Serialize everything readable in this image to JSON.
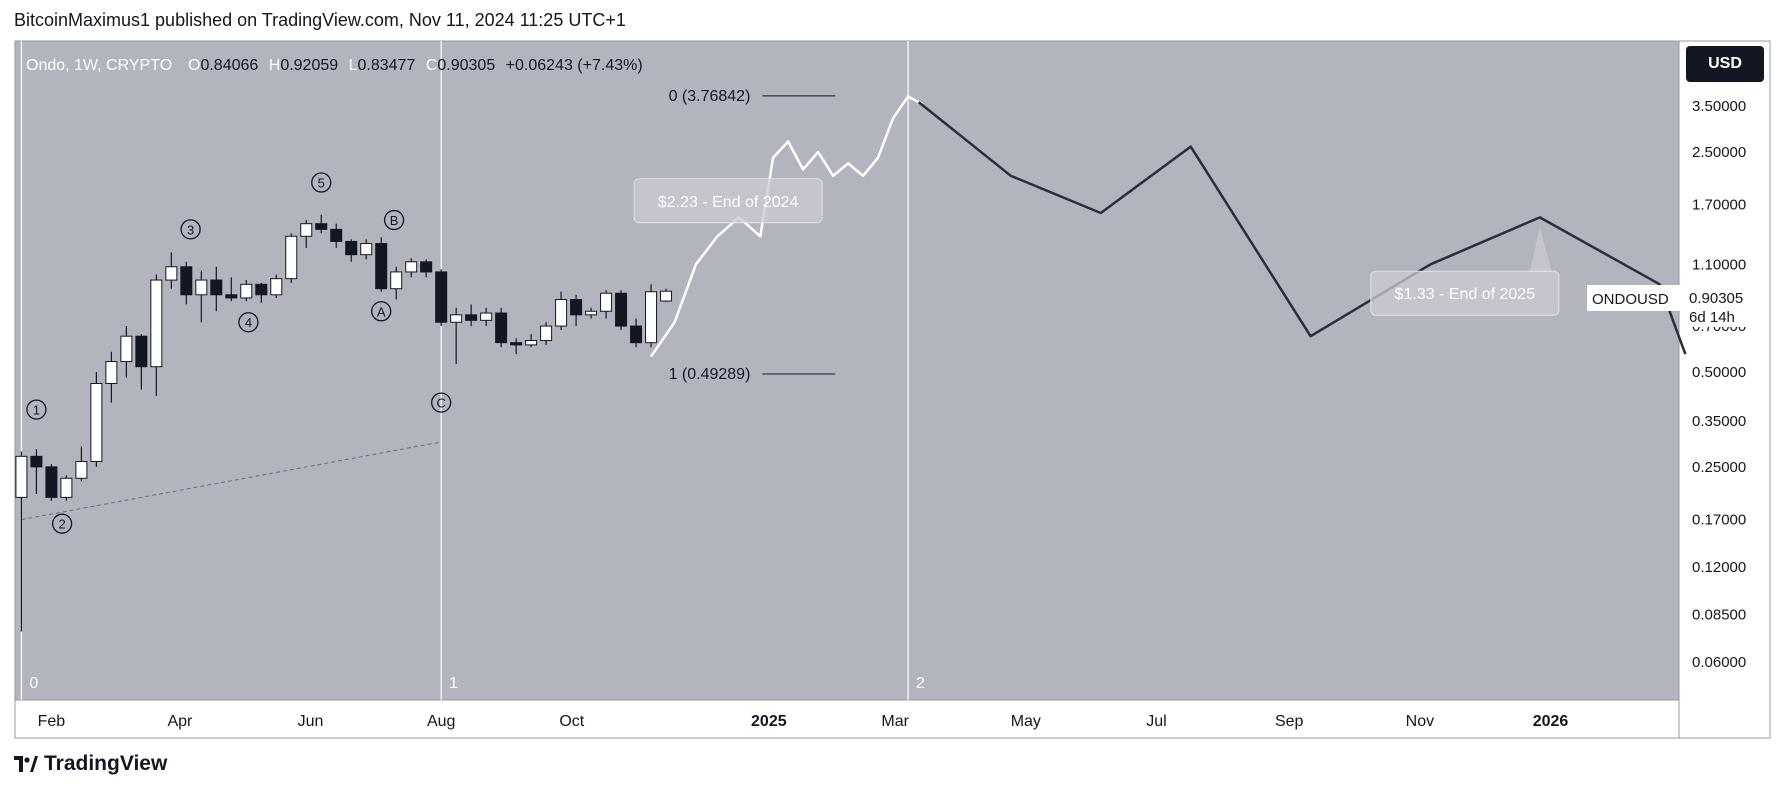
{
  "header": {
    "published_line": "BitcoinMaximus1 published on TradingView.com, Nov 11, 2024 11:25 UTC+1"
  },
  "footer": {
    "brand": "TradingView"
  },
  "legend": {
    "symbol": "Ondo, 1W, CRYPTO",
    "o_label": "O",
    "o_value": "0.84066",
    "h_label": "H",
    "h_value": "0.92059",
    "l_label": "L",
    "l_value": "0.83477",
    "c_label": "C",
    "c_value": "0.90305",
    "change": "+0.06243 (+7.43%)"
  },
  "currency_button": "USD",
  "price_tag": {
    "symbol": "ONDOUSD",
    "price": "0.90305",
    "countdown": "6d 14h"
  },
  "colors": {
    "background": "#ffffff",
    "plot_bg": "#b2b5be",
    "bull_body": "#ffffff",
    "bear_body": "#131722",
    "projection_white": "#ffffff",
    "projection_black": "#2a2e39",
    "axis_text": "#131722"
  },
  "chart_data": {
    "type": "candlestick",
    "y_scale": "log",
    "ylim": [
      0.05,
      5.0
    ],
    "x_start": "2024-01-15",
    "x_end": "2026-03-02",
    "y_ticks": [
      "3.50000",
      "2.50000",
      "1.70000",
      "1.10000",
      "0.70000",
      "0.50000",
      "0.35000",
      "0.25000",
      "0.17000",
      "0.12000",
      "0.08500",
      "0.06000"
    ],
    "x_ticks": [
      {
        "label": "Feb",
        "date": "2024-02-01",
        "bold": false
      },
      {
        "label": "Apr",
        "date": "2024-04-01",
        "bold": false
      },
      {
        "label": "Jun",
        "date": "2024-06-01",
        "bold": false
      },
      {
        "label": "Aug",
        "date": "2024-08-01",
        "bold": false
      },
      {
        "label": "Oct",
        "date": "2024-10-01",
        "bold": false
      },
      {
        "label": "2025",
        "date": "2025-01-01",
        "bold": true
      },
      {
        "label": "Mar",
        "date": "2025-03-01",
        "bold": false
      },
      {
        "label": "May",
        "date": "2025-05-01",
        "bold": false
      },
      {
        "label": "Jul",
        "date": "2025-07-01",
        "bold": false
      },
      {
        "label": "Sep",
        "date": "2025-09-01",
        "bold": false
      },
      {
        "label": "Nov",
        "date": "2025-11-01",
        "bold": false
      },
      {
        "label": "2026",
        "date": "2026-01-01",
        "bold": true
      }
    ],
    "candles": [
      {
        "date": "2024-01-18",
        "o": 0.2,
        "h": 0.28,
        "l": 0.075,
        "c": 0.27
      },
      {
        "date": "2024-01-25",
        "o": 0.27,
        "h": 0.285,
        "l": 0.205,
        "c": 0.25
      },
      {
        "date": "2024-02-01",
        "o": 0.25,
        "h": 0.255,
        "l": 0.195,
        "c": 0.2
      },
      {
        "date": "2024-02-08",
        "o": 0.2,
        "h": 0.235,
        "l": 0.195,
        "c": 0.23
      },
      {
        "date": "2024-02-15",
        "o": 0.23,
        "h": 0.29,
        "l": 0.225,
        "c": 0.26
      },
      {
        "date": "2024-02-22",
        "o": 0.26,
        "h": 0.5,
        "l": 0.25,
        "c": 0.46
      },
      {
        "date": "2024-02-29",
        "o": 0.46,
        "h": 0.58,
        "l": 0.4,
        "c": 0.54
      },
      {
        "date": "2024-03-07",
        "o": 0.54,
        "h": 0.7,
        "l": 0.48,
        "c": 0.65
      },
      {
        "date": "2024-03-14",
        "o": 0.65,
        "h": 0.66,
        "l": 0.44,
        "c": 0.52
      },
      {
        "date": "2024-03-21",
        "o": 0.52,
        "h": 1.02,
        "l": 0.42,
        "c": 0.98
      },
      {
        "date": "2024-03-28",
        "o": 0.98,
        "h": 1.2,
        "l": 0.92,
        "c": 1.08
      },
      {
        "date": "2024-04-04",
        "o": 1.08,
        "h": 1.12,
        "l": 0.82,
        "c": 0.88
      },
      {
        "date": "2024-04-11",
        "o": 0.88,
        "h": 1.05,
        "l": 0.72,
        "c": 0.98
      },
      {
        "date": "2024-04-18",
        "o": 0.98,
        "h": 1.08,
        "l": 0.78,
        "c": 0.88
      },
      {
        "date": "2024-04-25",
        "o": 0.88,
        "h": 1.0,
        "l": 0.84,
        "c": 0.86
      },
      {
        "date": "2024-05-02",
        "o": 0.86,
        "h": 0.98,
        "l": 0.84,
        "c": 0.95
      },
      {
        "date": "2024-05-09",
        "o": 0.95,
        "h": 0.96,
        "l": 0.83,
        "c": 0.88
      },
      {
        "date": "2024-05-16",
        "o": 0.88,
        "h": 1.02,
        "l": 0.86,
        "c": 0.99
      },
      {
        "date": "2024-05-23",
        "o": 0.99,
        "h": 1.38,
        "l": 0.96,
        "c": 1.35
      },
      {
        "date": "2024-05-30",
        "o": 1.35,
        "h": 1.52,
        "l": 1.24,
        "c": 1.48
      },
      {
        "date": "2024-06-06",
        "o": 1.48,
        "h": 1.58,
        "l": 1.38,
        "c": 1.42
      },
      {
        "date": "2024-06-13",
        "o": 1.42,
        "h": 1.48,
        "l": 1.24,
        "c": 1.3
      },
      {
        "date": "2024-06-20",
        "o": 1.3,
        "h": 1.32,
        "l": 1.12,
        "c": 1.18
      },
      {
        "date": "2024-06-27",
        "o": 1.18,
        "h": 1.32,
        "l": 1.14,
        "c": 1.28
      },
      {
        "date": "2024-07-04",
        "o": 1.28,
        "h": 1.34,
        "l": 0.9,
        "c": 0.92
      },
      {
        "date": "2024-07-11",
        "o": 0.92,
        "h": 1.08,
        "l": 0.85,
        "c": 1.04
      },
      {
        "date": "2024-07-18",
        "o": 1.04,
        "h": 1.15,
        "l": 1.0,
        "c": 1.12
      },
      {
        "date": "2024-07-25",
        "o": 1.12,
        "h": 1.14,
        "l": 1.0,
        "c": 1.04
      },
      {
        "date": "2024-08-01",
        "o": 1.04,
        "h": 1.06,
        "l": 0.7,
        "c": 0.72
      },
      {
        "date": "2024-08-08",
        "o": 0.72,
        "h": 0.8,
        "l": 0.53,
        "c": 0.76
      },
      {
        "date": "2024-08-15",
        "o": 0.76,
        "h": 0.82,
        "l": 0.7,
        "c": 0.73
      },
      {
        "date": "2024-08-22",
        "o": 0.73,
        "h": 0.8,
        "l": 0.7,
        "c": 0.77
      },
      {
        "date": "2024-08-29",
        "o": 0.77,
        "h": 0.8,
        "l": 0.6,
        "c": 0.62
      },
      {
        "date": "2024-09-05",
        "o": 0.62,
        "h": 0.64,
        "l": 0.57,
        "c": 0.61
      },
      {
        "date": "2024-09-12",
        "o": 0.61,
        "h": 0.66,
        "l": 0.6,
        "c": 0.63
      },
      {
        "date": "2024-09-19",
        "o": 0.63,
        "h": 0.72,
        "l": 0.61,
        "c": 0.7
      },
      {
        "date": "2024-09-26",
        "o": 0.7,
        "h": 0.9,
        "l": 0.68,
        "c": 0.85
      },
      {
        "date": "2024-10-03",
        "o": 0.85,
        "h": 0.88,
        "l": 0.7,
        "c": 0.76
      },
      {
        "date": "2024-10-10",
        "o": 0.76,
        "h": 0.8,
        "l": 0.74,
        "c": 0.78
      },
      {
        "date": "2024-10-17",
        "o": 0.78,
        "h": 0.91,
        "l": 0.74,
        "c": 0.89
      },
      {
        "date": "2024-10-24",
        "o": 0.89,
        "h": 0.91,
        "l": 0.68,
        "c": 0.7
      },
      {
        "date": "2024-10-31",
        "o": 0.7,
        "h": 0.74,
        "l": 0.6,
        "c": 0.62
      },
      {
        "date": "2024-11-07",
        "o": 0.62,
        "h": 0.95,
        "l": 0.6,
        "c": 0.9
      },
      {
        "date": "2024-11-14",
        "o": 0.84066,
        "h": 0.92059,
        "l": 0.83477,
        "c": 0.90305
      }
    ],
    "projection_2024": {
      "color": "white",
      "points": [
        [
          "2024-11-07",
          0.56
        ],
        [
          "2024-11-18",
          0.72
        ],
        [
          "2024-11-28",
          1.1
        ],
        [
          "2024-12-08",
          1.35
        ],
        [
          "2024-12-18",
          1.55
        ],
        [
          "2024-12-28",
          1.35
        ],
        [
          "2025-01-03",
          2.4
        ],
        [
          "2025-01-10",
          2.7
        ],
        [
          "2025-01-17",
          2.2
        ],
        [
          "2025-01-24",
          2.5
        ],
        [
          "2025-01-31",
          2.1
        ],
        [
          "2025-02-07",
          2.3
        ],
        [
          "2025-02-14",
          2.1
        ],
        [
          "2025-02-21",
          2.4
        ],
        [
          "2025-02-28",
          3.2
        ],
        [
          "2025-03-07",
          3.75
        ],
        [
          "2025-03-14",
          3.55
        ]
      ]
    },
    "projection_2025": {
      "color": "black",
      "points": [
        [
          "2025-03-12",
          3.6
        ],
        [
          "2025-04-24",
          2.1
        ],
        [
          "2025-06-05",
          1.6
        ],
        [
          "2025-07-17",
          2.6
        ],
        [
          "2025-09-11",
          0.65
        ],
        [
          "2025-11-06",
          1.1
        ],
        [
          "2025-12-27",
          1.55
        ],
        [
          "2026-02-21",
          0.95
        ],
        [
          "2026-03-05",
          0.57
        ]
      ]
    },
    "fib_levels": [
      {
        "label": "0 (3.76842)",
        "value": 3.76842,
        "x_from": "2024-12-29",
        "x_to": "2025-02-01"
      },
      {
        "label": "1 (0.49289)",
        "value": 0.49289,
        "x_from": "2024-12-29",
        "x_to": "2025-02-01"
      }
    ],
    "cycle_markers": [
      {
        "label": "0",
        "date": "2024-01-18"
      },
      {
        "label": "1",
        "date": "2024-08-01"
      },
      {
        "label": "2",
        "date": "2025-03-07"
      }
    ],
    "wave_labels": [
      {
        "label": "1",
        "date": "2024-01-25",
        "value": 0.38
      },
      {
        "label": "2",
        "date": "2024-02-06",
        "value": 0.165
      },
      {
        "label": "3",
        "date": "2024-04-06",
        "value": 1.42
      },
      {
        "label": "4",
        "date": "2024-05-03",
        "value": 0.72
      },
      {
        "label": "5",
        "date": "2024-06-06",
        "value": 2.0
      },
      {
        "label": "A",
        "date": "2024-07-04",
        "value": 0.78
      },
      {
        "label": "B",
        "date": "2024-07-10",
        "value": 1.52
      },
      {
        "label": "C",
        "date": "2024-08-01",
        "value": 0.4
      }
    ],
    "trendline": {
      "from": [
        "2024-01-18",
        0.17
      ],
      "to": [
        "2024-08-01",
        0.3
      ]
    },
    "callouts": [
      {
        "text": "$2.23 - End of 2024",
        "date": "2024-12-13",
        "value": 1.75,
        "pointer_date": "2025-01-09",
        "pointer_value": 2.05
      },
      {
        "text": "$1.33 - End of 2025",
        "date": "2025-11-22",
        "value": 0.89,
        "pointer_date": "2025-12-27",
        "pointer_value": 1.45
      }
    ]
  }
}
